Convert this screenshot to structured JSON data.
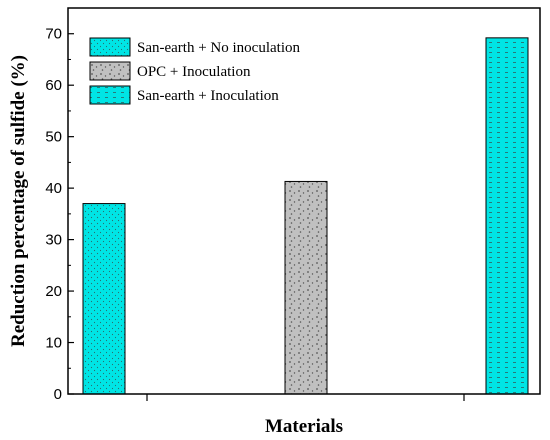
{
  "chart_data": {
    "type": "bar",
    "xlabel": "Materials",
    "ylabel": "Reduction percentage of sulfide (%)",
    "ylim": [
      0,
      75
    ],
    "yticks": [
      0,
      10,
      20,
      30,
      40,
      50,
      60,
      70
    ],
    "grid": false,
    "legend_position": "top-left",
    "series": [
      {
        "name": "San-earth + No inoculation",
        "value": 37,
        "color": "#00e5e5",
        "pattern": "fine-dots"
      },
      {
        "name": "OPC + Inoculation",
        "value": 41.3,
        "color": "#c0c0c0",
        "pattern": "coarse-dots"
      },
      {
        "name": "San-earth + Inoculation",
        "value": 69.2,
        "color": "#00e5e5",
        "pattern": "dashes"
      }
    ]
  }
}
